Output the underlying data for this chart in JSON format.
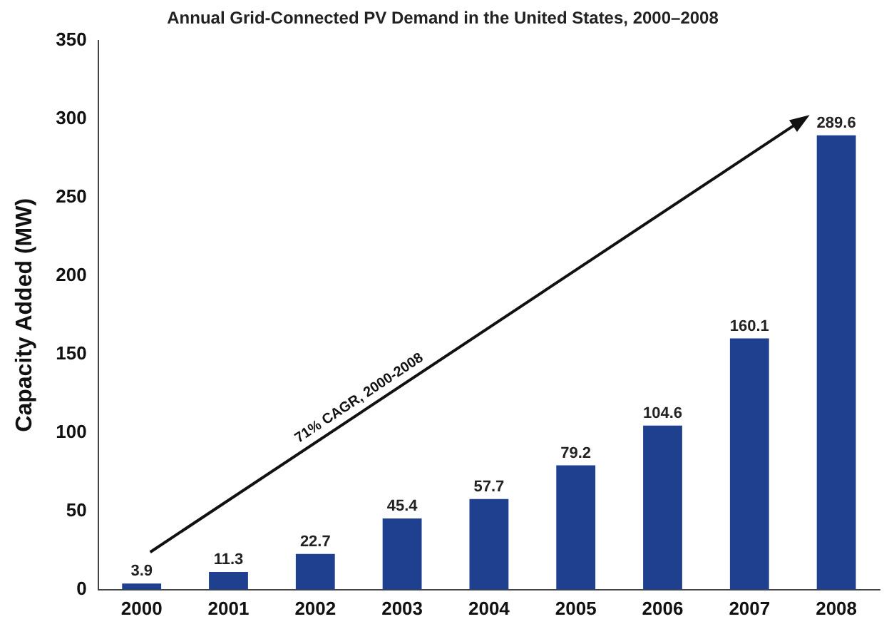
{
  "chart_data": {
    "type": "bar",
    "title": "Annual Grid-Connected PV Demand in the United States, 2000–2008",
    "ylabel": "Capacity Added (MW)",
    "categories": [
      "2000",
      "2001",
      "2002",
      "2003",
      "2004",
      "2005",
      "2006",
      "2007",
      "2008"
    ],
    "values": [
      3.9,
      11.3,
      22.7,
      45.4,
      57.7,
      79.2,
      104.6,
      160.1,
      289.6
    ],
    "color": "#1f3f8f",
    "ylim": [
      0,
      350
    ],
    "yticks": [
      0,
      50,
      100,
      150,
      200,
      250,
      300,
      350
    ],
    "grid": false,
    "data_labels": true,
    "annotations": [
      "71% CAGR, 2000-2008"
    ]
  }
}
